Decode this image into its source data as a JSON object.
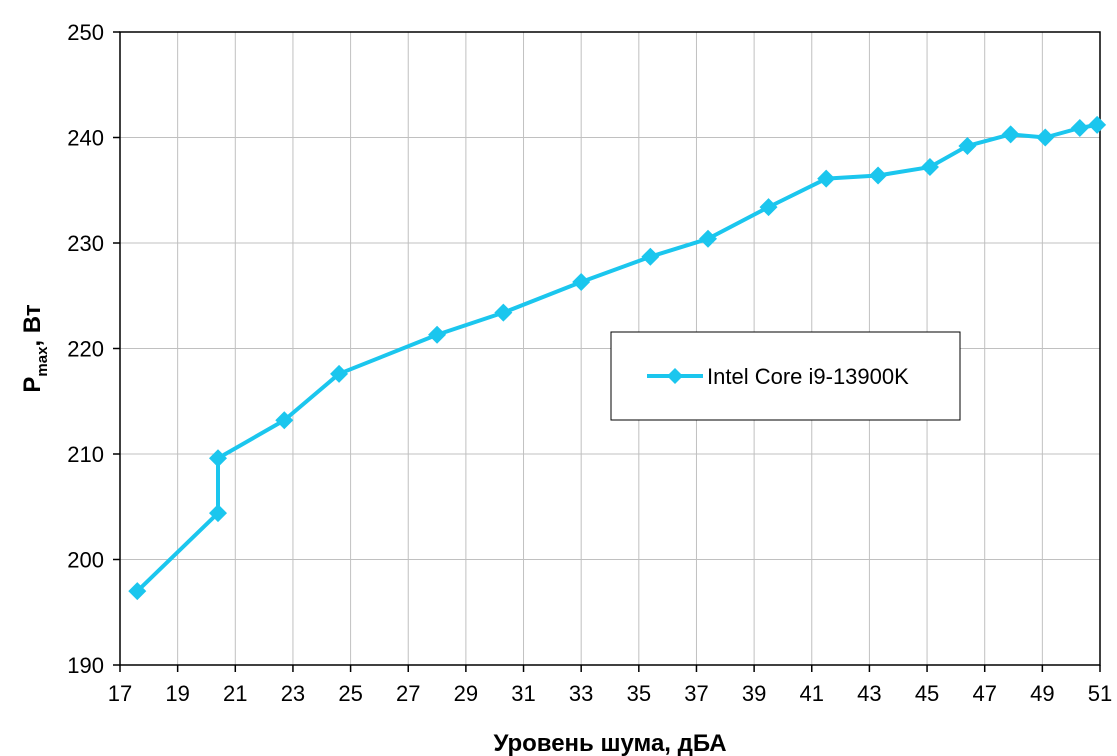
{
  "chart_data": {
    "type": "line",
    "title": "",
    "xlabel": "Уровень шума, дБА",
    "ylabel": {
      "main": "P",
      "sub": "max",
      "suffix": ", Вт"
    },
    "xlim": [
      17,
      51
    ],
    "ylim": [
      190,
      250
    ],
    "xticks": [
      17,
      19,
      21,
      23,
      25,
      27,
      29,
      31,
      33,
      35,
      37,
      39,
      41,
      43,
      45,
      47,
      49,
      51
    ],
    "yticks": [
      190,
      200,
      210,
      220,
      230,
      240,
      250
    ],
    "grid": true,
    "legend_position": "center-right",
    "series": [
      {
        "name": "Intel Core i9-13900K",
        "color": "#1BC6EE",
        "marker": "diamond",
        "x": [
          17.6,
          20.4,
          20.4,
          22.7,
          24.6,
          28.0,
          30.3,
          33.0,
          35.4,
          37.4,
          39.5,
          41.5,
          43.3,
          45.1,
          46.4,
          47.9,
          49.1,
          50.3,
          50.9
        ],
        "y": [
          197.0,
          204.4,
          209.6,
          213.2,
          217.6,
          221.3,
          223.4,
          226.3,
          228.7,
          230.4,
          233.4,
          236.1,
          236.4,
          237.2,
          239.2,
          240.3,
          240.0,
          240.9,
          241.2
        ]
      }
    ]
  }
}
